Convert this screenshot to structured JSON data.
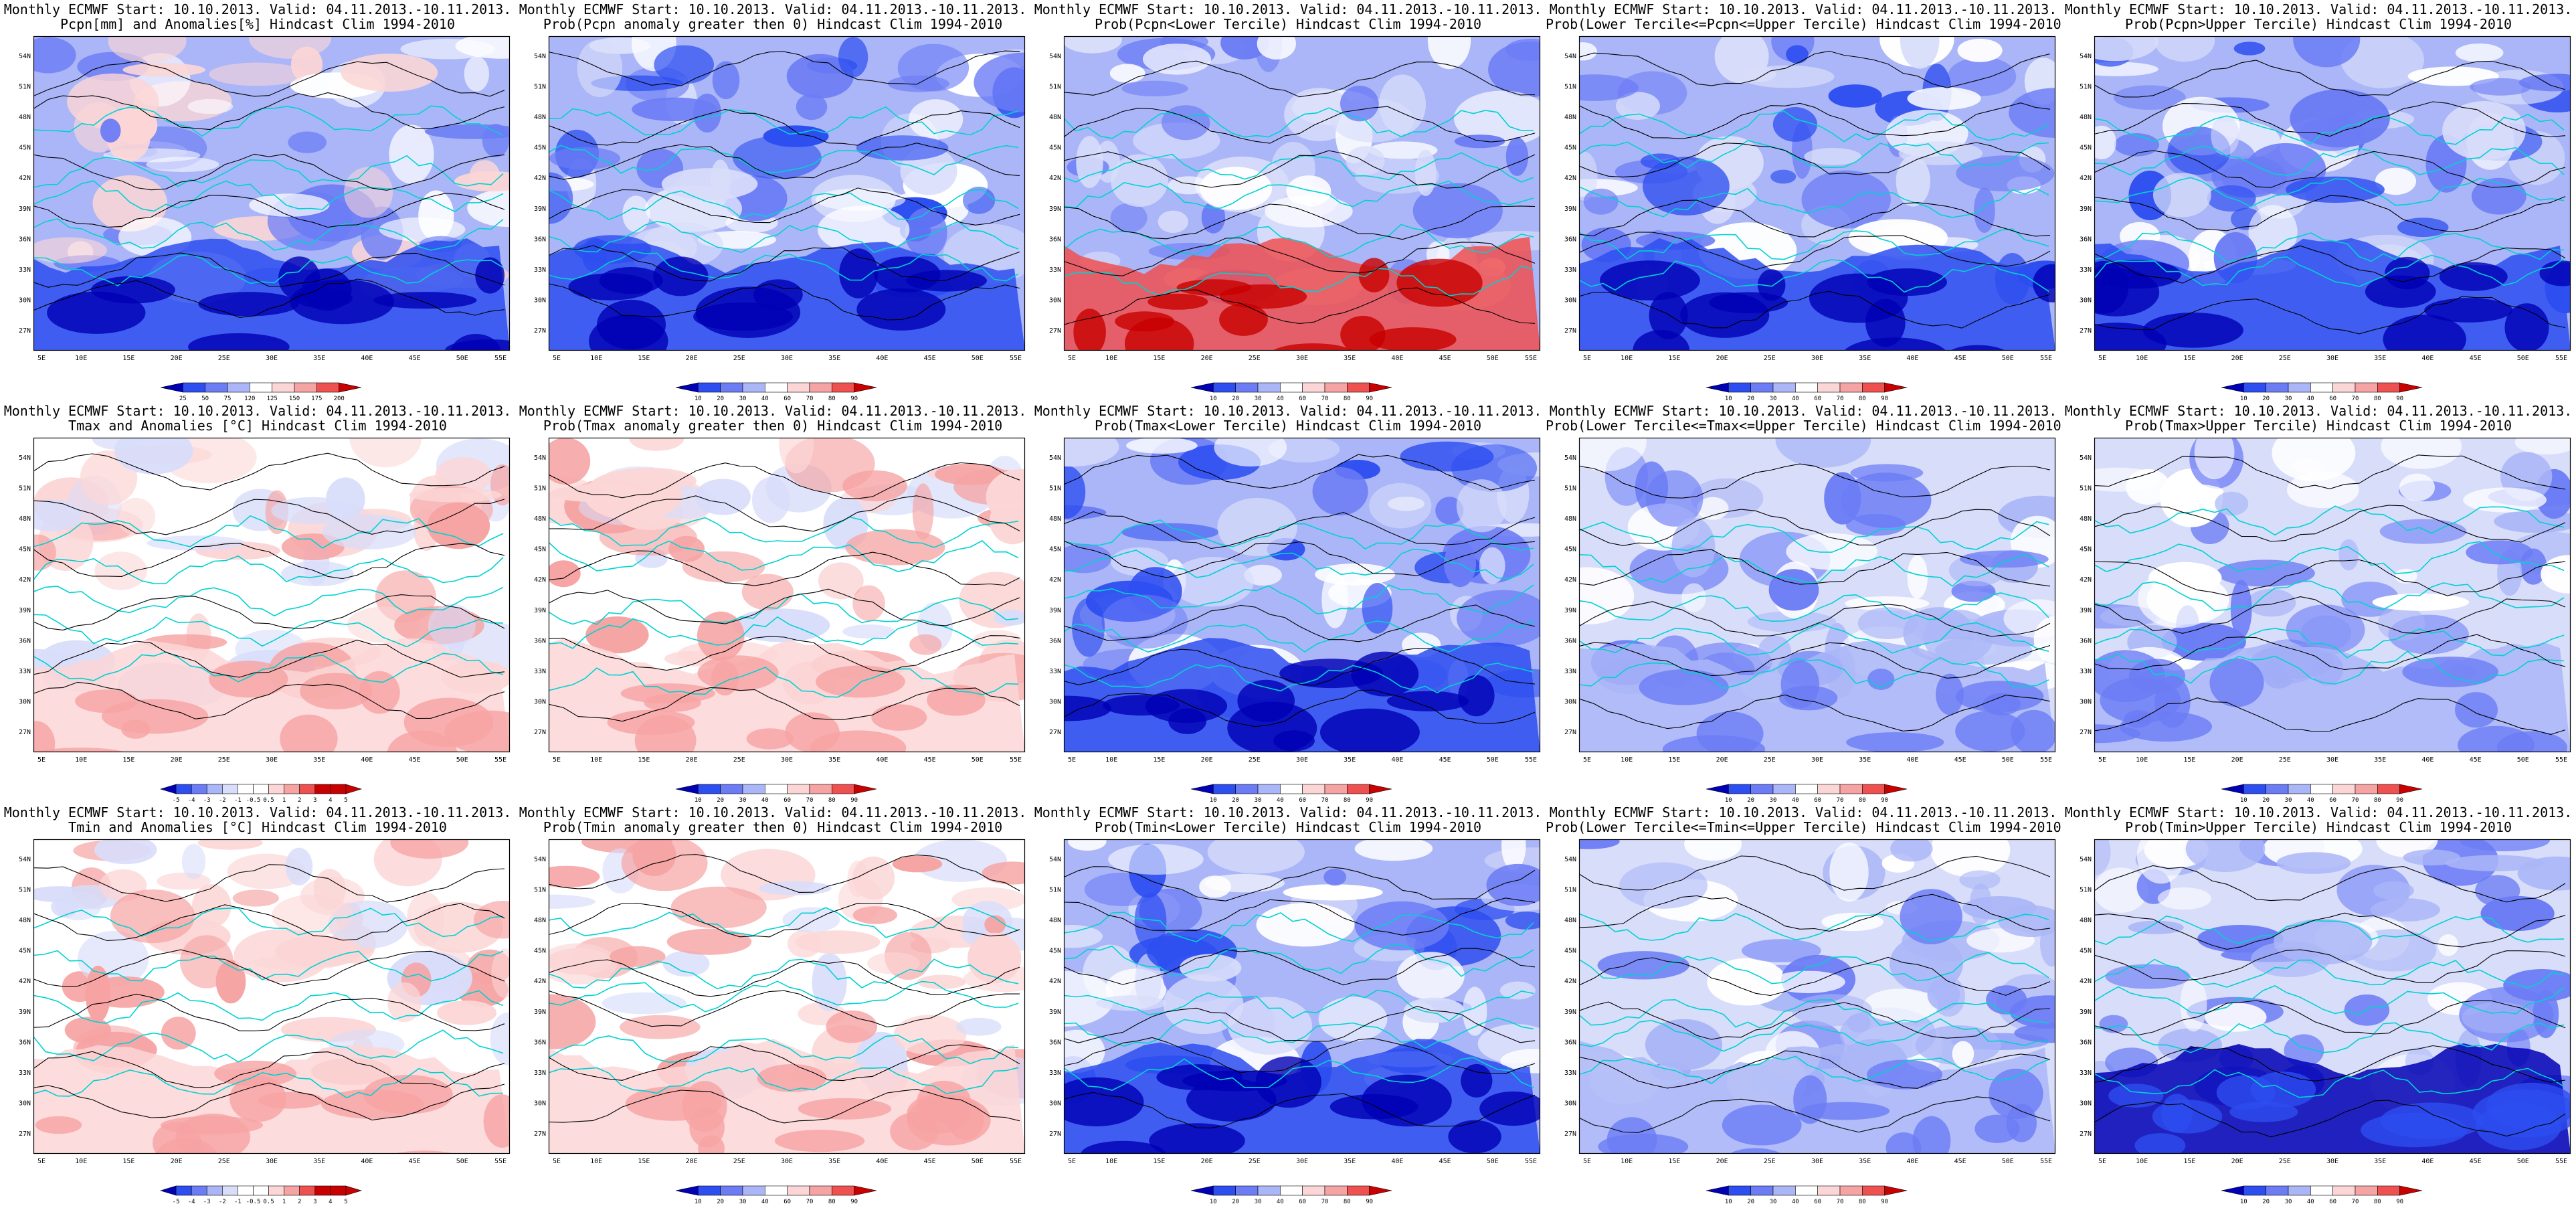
{
  "figure": {
    "header": "Monthly ECMWF Start: 10.10.2013. Valid: 04.11.2013.-10.11.2013.",
    "lon_labels": [
      "5E",
      "10E",
      "15E",
      "20E",
      "25E",
      "30E",
      "35E",
      "40E",
      "45E",
      "50E",
      "55E"
    ],
    "lat_labels": [
      "27N",
      "30N",
      "33N",
      "36N",
      "39N",
      "42N",
      "45N",
      "48N",
      "51N",
      "54N"
    ]
  },
  "colors": {
    "deep_blue": "#0000b4",
    "blue": "#2d4ef0",
    "mid_blue": "#6b7cf5",
    "light_blue": "#aab6f7",
    "very_light_blue": "#d8ddfa",
    "white": "#ffffff",
    "very_light_red": "#fcd6d6",
    "light_red": "#f6a3a3",
    "red": "#ef5050",
    "deep_red": "#c80000",
    "coast_line": "#00d2d2",
    "contour_line": "#000000"
  },
  "colorbars": {
    "pcpn_anom": [
      "25",
      "50",
      "75",
      "120",
      "125",
      "150",
      "175",
      "200"
    ],
    "prob": [
      "10",
      "20",
      "30",
      "40",
      "60",
      "70",
      "80",
      "90"
    ],
    "temp_anom": [
      "-5",
      "-4",
      "-3",
      "-2",
      "-1",
      "-0.5",
      "0.5",
      "1",
      "2",
      "3",
      "4",
      "5"
    ]
  },
  "panels": [
    {
      "id": "pcpn-anom",
      "row": 0,
      "col": 0,
      "title2": "Pcpn[mm] and Anomalies[%] Hindcast Clim 1994-2010",
      "variable": "precipitation",
      "statistic": "anomaly",
      "dominant": "mixed",
      "colorbar": "pcpn_anom"
    },
    {
      "id": "pcpn-prob-pos",
      "row": 0,
      "col": 1,
      "title2": "Prob(Pcpn anomaly greater then 0) Hindcast Clim 1994-2010",
      "variable": "precipitation",
      "statistic": "probability",
      "dominant": "blue",
      "colorbar": "prob"
    },
    {
      "id": "pcpn-prob-lower",
      "row": 0,
      "col": 2,
      "title2": "Prob(Pcpn<Lower Tercile) Hindcast Clim 1994-2010",
      "variable": "precipitation",
      "statistic": "probability",
      "dominant": "red-south",
      "colorbar": "prob"
    },
    {
      "id": "pcpn-prob-middle",
      "row": 0,
      "col": 3,
      "title2": "Prob(Lower Tercile<=Pcpn<=Upper Tercile) Hindcast Clim 1994-2010",
      "variable": "precipitation",
      "statistic": "probability",
      "dominant": "blue",
      "colorbar": "prob"
    },
    {
      "id": "pcpn-prob-upper",
      "row": 0,
      "col": 4,
      "title2": "Prob(Pcpn>Upper Tercile) Hindcast Clim 1994-2010",
      "variable": "precipitation",
      "statistic": "probability",
      "dominant": "blue",
      "colorbar": "prob"
    },
    {
      "id": "tmax-anom",
      "row": 1,
      "col": 0,
      "title2": "Tmax and Anomalies [°C] Hindcast Clim 1994-2010",
      "variable": "tmax",
      "statistic": "anomaly",
      "dominant": "white-pink",
      "colorbar": "temp_anom"
    },
    {
      "id": "tmax-prob-pos",
      "row": 1,
      "col": 1,
      "title2": "Prob(Tmax anomaly greater then 0) Hindcast Clim 1994-2010",
      "variable": "tmax",
      "statistic": "probability",
      "dominant": "white-pink",
      "colorbar": "prob"
    },
    {
      "id": "tmax-prob-lower",
      "row": 1,
      "col": 2,
      "title2": "Prob(Tmax<Lower Tercile) Hindcast Clim 1994-2010",
      "variable": "tmax",
      "statistic": "probability",
      "dominant": "blue",
      "colorbar": "prob"
    },
    {
      "id": "tmax-prob-middle",
      "row": 1,
      "col": 3,
      "title2": "Prob(Lower Tercile<=Tmax<=Upper Tercile) Hindcast Clim 1994-2010",
      "variable": "tmax",
      "statistic": "probability",
      "dominant": "light-blue",
      "colorbar": "prob"
    },
    {
      "id": "tmax-prob-upper",
      "row": 1,
      "col": 4,
      "title2": "Prob(Tmax>Upper Tercile) Hindcast Clim 1994-2010",
      "variable": "tmax",
      "statistic": "probability",
      "dominant": "light-blue",
      "colorbar": "prob"
    },
    {
      "id": "tmin-anom",
      "row": 2,
      "col": 0,
      "title2": "Tmin and Anomalies [°C] Hindcast Clim 1994-2010",
      "variable": "tmin",
      "statistic": "anomaly",
      "dominant": "white-pink",
      "colorbar": "temp_anom"
    },
    {
      "id": "tmin-prob-pos",
      "row": 2,
      "col": 1,
      "title2": "Prob(Tmin anomaly greater then 0) Hindcast Clim 1994-2010",
      "variable": "tmin",
      "statistic": "probability",
      "dominant": "white-pink",
      "colorbar": "prob"
    },
    {
      "id": "tmin-prob-lower",
      "row": 2,
      "col": 2,
      "title2": "Prob(Tmin<Lower Tercile) Hindcast Clim 1994-2010",
      "variable": "tmin",
      "statistic": "probability",
      "dominant": "blue",
      "colorbar": "prob"
    },
    {
      "id": "tmin-prob-middle",
      "row": 2,
      "col": 3,
      "title2": "Prob(Lower Tercile<=Tmin<=Upper Tercile) Hindcast Clim 1994-2010",
      "variable": "tmin",
      "statistic": "probability",
      "dominant": "light-blue",
      "colorbar": "prob"
    },
    {
      "id": "tmin-prob-upper",
      "row": 2,
      "col": 4,
      "title2": "Prob(Tmin>Upper Tercile) Hindcast Clim 1994-2010",
      "variable": "tmin",
      "statistic": "probability",
      "dominant": "blue-south",
      "colorbar": "prob"
    }
  ]
}
